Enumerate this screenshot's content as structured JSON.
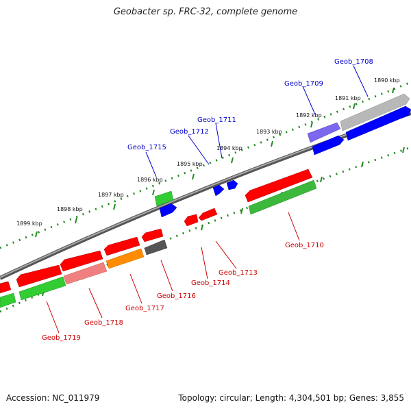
{
  "title": "Geobacter sp. FRC-32, complete genome",
  "accession_text": "Accession: NC_011979",
  "summary_text": "Topology: circular; Length: 4,304,501 bp; Genes: 3,855",
  "colors": {
    "backbone": "#808080",
    "tick_dot": "#228b22",
    "forward_label": "#0000cc",
    "reverse_label": "#cc0000"
  },
  "scale_labels": [
    "1890 kbp",
    "1891 kbp",
    "1892 kbp",
    "1893 kbp",
    "1894 kbp",
    "1895 kbp",
    "1896 kbp",
    "1897 kbp",
    "1898 kbp",
    "1899 kbp"
  ],
  "genes": [
    {
      "id": "Geob_1708",
      "strand": "forward",
      "color": "#b0b0b0"
    },
    {
      "id": "Geob_1709",
      "strand": "forward",
      "color": "#7b68ee"
    },
    {
      "id": "Geob_1711",
      "strand": "forward",
      "color": "#0000ff"
    },
    {
      "id": "Geob_1712",
      "strand": "forward",
      "color": "#0000ff"
    },
    {
      "id": "Geob_1715",
      "strand": "forward",
      "color": "#32cd32"
    },
    {
      "id": "Geob_1710",
      "strand": "reverse",
      "color": "#ff0000"
    },
    {
      "id": "Geob_1713",
      "strand": "reverse",
      "color": "#ff0000"
    },
    {
      "id": "Geob_1714",
      "strand": "reverse",
      "color": "#ff0000"
    },
    {
      "id": "Geob_1716",
      "strand": "reverse",
      "color": "#555555"
    },
    {
      "id": "Geob_1717",
      "strand": "reverse",
      "color": "#ff8c00"
    },
    {
      "id": "Geob_1718",
      "strand": "reverse",
      "color": "#f08080"
    },
    {
      "id": "Geob_1719",
      "strand": "reverse",
      "color": "#ff0000"
    }
  ]
}
